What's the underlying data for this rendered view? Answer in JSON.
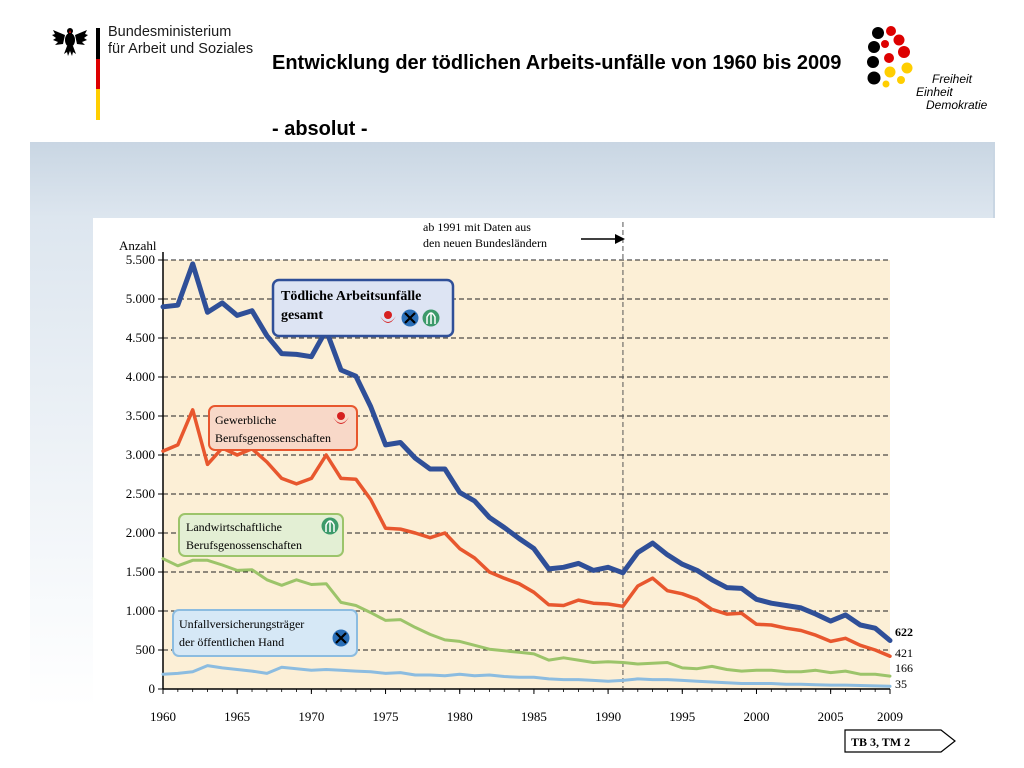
{
  "header": {
    "ministry_line1": "Bundesministerium",
    "ministry_line2": "für Arbeit und Soziales",
    "title": "Entwicklung der tödlichen Arbeits-unfälle von 1960 bis 2009",
    "subtitle": "- absolut -",
    "campaign_word1": "Freiheit",
    "campaign_word2": "Einheit",
    "campaign_word3": "Demokratie"
  },
  "colors": {
    "flag_black": "#000000",
    "flag_red": "#dd0000",
    "flag_gold": "#ffce00",
    "band": "#c9d6e3",
    "plot_bg": "#fcefd6",
    "total": "#2f4f98",
    "gewerblich": "#e8572e",
    "landwirtschaft": "#9cc46a",
    "oeffentlich": "#8cbce0"
  },
  "icons": {
    "eagle": "federal-eagle-icon",
    "gewerblich": "bg-gewerblich-icon",
    "landwirtschaft": "bg-landwirtschaft-icon",
    "oeffentlich": "unfallkasse-icon"
  },
  "chart_data": {
    "type": "line",
    "ylabel": "Anzahl",
    "xlim": [
      1960,
      2009
    ],
    "ylim": [
      0,
      5500
    ],
    "y_ticks": [
      0,
      500,
      1000,
      1500,
      2000,
      2500,
      3000,
      3500,
      4000,
      4500,
      5000,
      5500
    ],
    "y_tick_labels": [
      "0",
      "500",
      "1.000",
      "1.500",
      "2.000",
      "2.500",
      "3.000",
      "3.500",
      "4.000",
      "4.500",
      "5.000",
      "5.500"
    ],
    "x_ticks": [
      1960,
      1965,
      1970,
      1975,
      1980,
      1985,
      1990,
      1995,
      2000,
      2005,
      2009
    ],
    "x_tick_labels": [
      "1960",
      "1965",
      "1970",
      "1975",
      "1980",
      "1985",
      "1990",
      "1995",
      "2000",
      "2005",
      "2009"
    ],
    "grid": "dashed horizontal",
    "annotation": {
      "text_line1": "ab 1991 mit Daten aus",
      "text_line2": "den neuen Bundesländern",
      "x": 1991
    },
    "end_labels": [
      "622",
      "421",
      "166",
      "35"
    ],
    "years": [
      1960,
      1961,
      1962,
      1963,
      1964,
      1965,
      1966,
      1967,
      1968,
      1969,
      1970,
      1971,
      1972,
      1973,
      1974,
      1975,
      1976,
      1977,
      1978,
      1979,
      1980,
      1981,
      1982,
      1983,
      1984,
      1985,
      1986,
      1987,
      1988,
      1989,
      1990,
      1991,
      1992,
      1993,
      1994,
      1995,
      1996,
      1997,
      1998,
      1999,
      2000,
      2001,
      2002,
      2003,
      2004,
      2005,
      2006,
      2007,
      2008,
      2009
    ],
    "series": [
      {
        "name_line1": "Tödliche Arbeitsunfälle",
        "name_line2": "gesamt",
        "color_key": "total",
        "values": [
          4900,
          4920,
          5450,
          4830,
          4950,
          4790,
          4850,
          4530,
          4300,
          4290,
          4260,
          4600,
          4090,
          4010,
          3620,
          3130,
          3160,
          2960,
          2820,
          2820,
          2520,
          2410,
          2200,
          2070,
          1930,
          1800,
          1540,
          1560,
          1610,
          1520,
          1560,
          1490,
          1750,
          1870,
          1720,
          1600,
          1520,
          1400,
          1300,
          1290,
          1150,
          1100,
          1070,
          1040,
          960,
          870,
          950,
          820,
          780,
          622
        ]
      },
      {
        "name_line1": "Gewerbliche",
        "name_line2": "Berufsgenossenschaften",
        "color_key": "gewerblich",
        "values": [
          3050,
          3130,
          3580,
          2880,
          3090,
          3000,
          3080,
          2910,
          2700,
          2630,
          2700,
          3000,
          2700,
          2690,
          2430,
          2060,
          2050,
          2000,
          1940,
          2000,
          1800,
          1680,
          1500,
          1420,
          1350,
          1240,
          1080,
          1070,
          1140,
          1100,
          1090,
          1060,
          1320,
          1420,
          1260,
          1220,
          1150,
          1020,
          960,
          970,
          830,
          820,
          780,
          750,
          690,
          610,
          650,
          560,
          500,
          421
        ]
      },
      {
        "name_line1": "Landwirtschaftliche",
        "name_line2": "Berufsgenossenschaften",
        "color_key": "landwirtschaft",
        "values": [
          1670,
          1580,
          1650,
          1650,
          1590,
          1520,
          1530,
          1400,
          1330,
          1400,
          1340,
          1350,
          1110,
          1070,
          980,
          880,
          890,
          790,
          700,
          630,
          610,
          560,
          510,
          490,
          470,
          450,
          370,
          400,
          370,
          340,
          350,
          340,
          320,
          330,
          340,
          270,
          260,
          290,
          250,
          230,
          240,
          240,
          220,
          220,
          240,
          210,
          230,
          190,
          190,
          166
        ]
      },
      {
        "name_line1": "Unfallversicherungsträger",
        "name_line2": "der öffentlichen Hand",
        "color_key": "oeffentlich",
        "values": [
          190,
          200,
          220,
          300,
          270,
          250,
          230,
          200,
          280,
          260,
          240,
          250,
          240,
          230,
          220,
          200,
          210,
          180,
          180,
          170,
          190,
          170,
          180,
          160,
          150,
          150,
          130,
          120,
          120,
          110,
          100,
          110,
          130,
          120,
          120,
          110,
          100,
          90,
          80,
          70,
          70,
          70,
          60,
          60,
          55,
          50,
          50,
          45,
          40,
          35
        ]
      }
    ],
    "reference_badge": "TB 3, TM 2"
  }
}
